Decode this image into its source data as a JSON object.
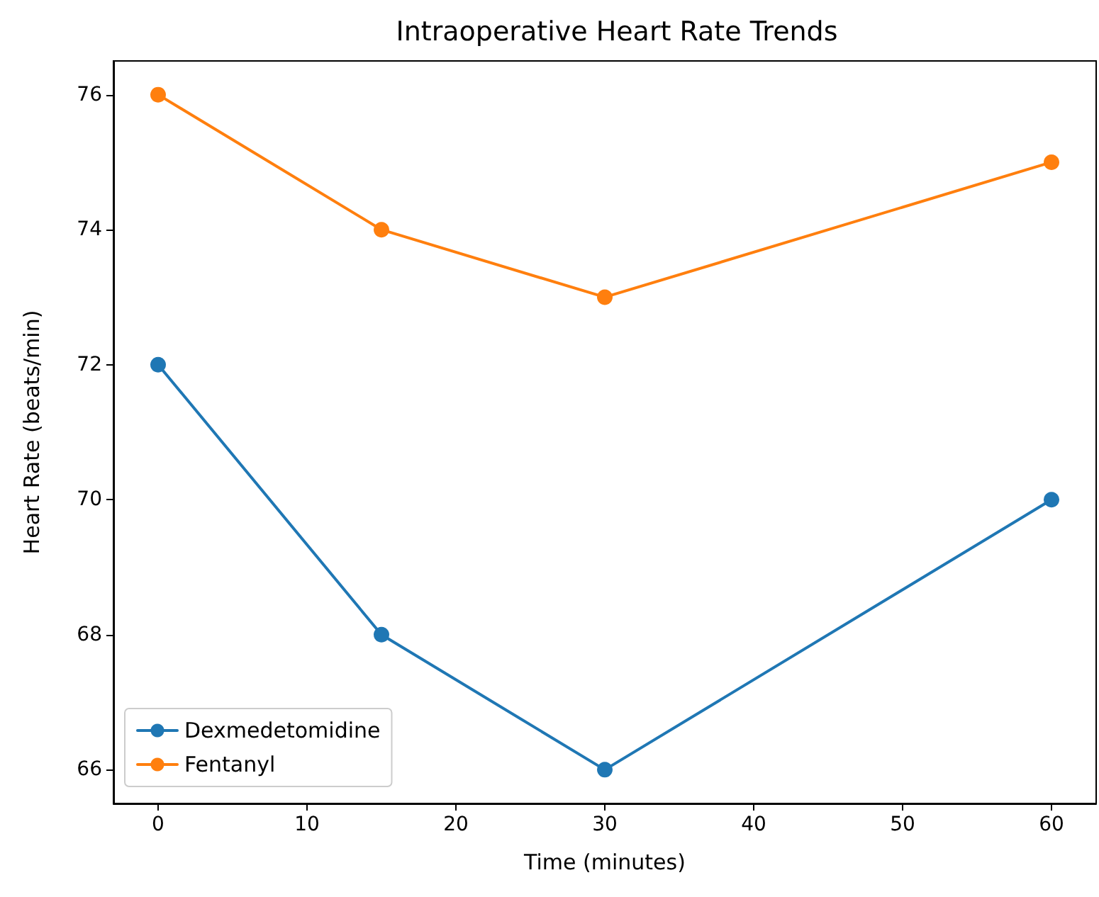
{
  "chart_data": {
    "type": "line",
    "title": "Intraoperative Heart Rate Trends",
    "xlabel": "Time (minutes)",
    "ylabel": "Heart Rate (beats/min)",
    "x": [
      0,
      15,
      30,
      60
    ],
    "series": [
      {
        "name": "Dexmedetomidine",
        "color": "#1f77b4",
        "values": [
          72,
          68,
          66,
          70
        ]
      },
      {
        "name": "Fentanyl",
        "color": "#ff7f0e",
        "values": [
          76,
          74,
          73,
          75
        ]
      }
    ],
    "xlim": [
      -3,
      63
    ],
    "xticks": [
      0,
      10,
      20,
      30,
      40,
      50,
      60
    ],
    "ylim": [
      65.5,
      76.5
    ],
    "yticks": [
      66,
      68,
      70,
      72,
      74,
      76
    ],
    "grid": false,
    "legend": "bottom left",
    "marker": "circle",
    "line_style": "solid"
  }
}
